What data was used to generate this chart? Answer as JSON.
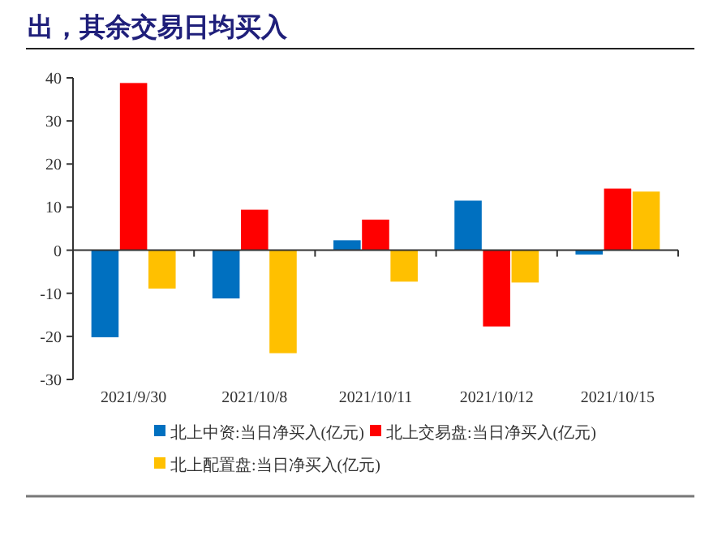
{
  "chart_data": {
    "type": "bar",
    "title": "出，其余交易日均买入",
    "categories": [
      "2021/9/30",
      "2021/10/8",
      "2021/10/11",
      "2021/10/12",
      "2021/10/15"
    ],
    "series": [
      {
        "name": "北上中资:当日净买入(亿元)",
        "color": "#0070c0",
        "values": [
          -20.2,
          -11.2,
          2.3,
          11.5,
          -1.0
        ]
      },
      {
        "name": "北上交易盘:当日净买入(亿元)",
        "color": "#ff0000",
        "values": [
          38.8,
          9.4,
          7.1,
          -17.7,
          14.3
        ]
      },
      {
        "name": "北上配置盘:当日净买入(亿元)",
        "color": "#ffc000",
        "values": [
          -8.9,
          -23.9,
          -7.3,
          -7.5,
          13.6
        ]
      }
    ],
    "ylim": [
      -30,
      40
    ],
    "yticks": [
      -30,
      -20,
      -10,
      0,
      10,
      20,
      30,
      40
    ],
    "legend": "bottom"
  }
}
